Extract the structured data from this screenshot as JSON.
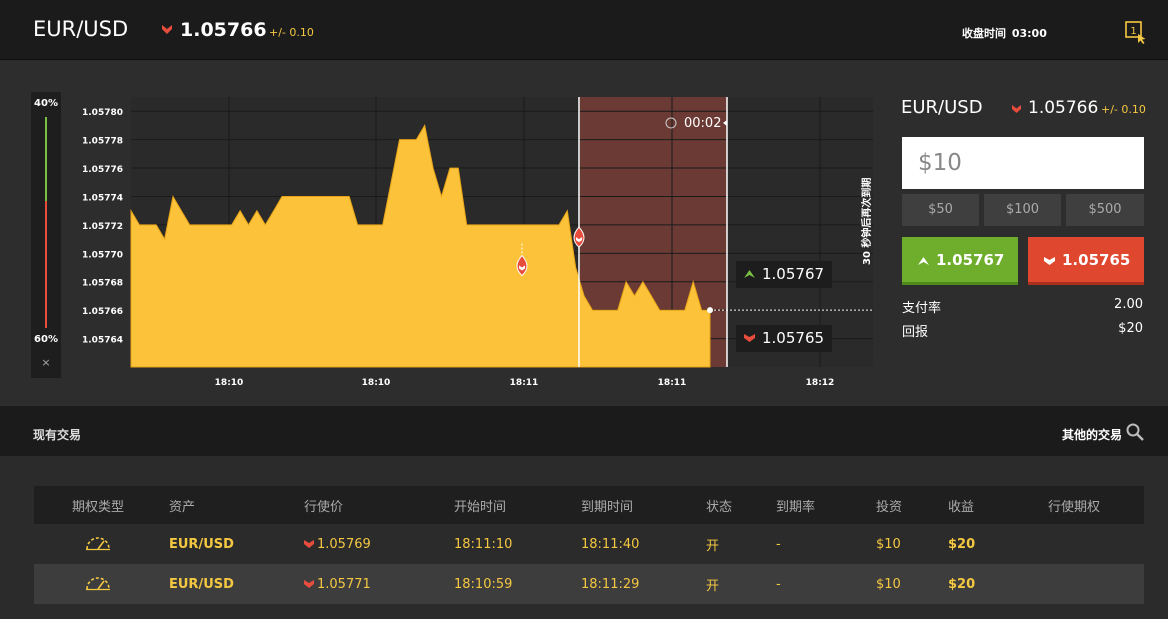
{
  "header": {
    "symbol": "EUR/USD",
    "price": "1.05766",
    "change": "+/- 0.10",
    "close_label": "收盘时间",
    "close_time": "03:00",
    "icon": "one-click-icon"
  },
  "sentiment": {
    "top_percent": "40%",
    "bottom_percent": "60%",
    "close_symbol": "×",
    "call_fraction": 0.4,
    "put_fraction": 0.6
  },
  "chart": {
    "countdown": "00:02",
    "rotated_note": "30 秒钟后再次到期",
    "call_tag": "1.05767",
    "put_tag": "1.05765",
    "colors": {
      "area": "#fbc23a",
      "expiry_zone": "#6b3a34",
      "call": "#79c043",
      "put": "#e74c3c"
    }
  },
  "chart_data": {
    "type": "area",
    "y_ticks": [
      "1.05780",
      "1.05778",
      "1.05776",
      "1.05774",
      "1.05772",
      "1.05770",
      "1.05768",
      "1.05766",
      "1.05764"
    ],
    "x_ticks": [
      "18:10",
      "18:10",
      "18:11",
      "18:11",
      "18:12"
    ],
    "ylim": [
      1.05762,
      1.05782
    ],
    "current_price": 1.05766,
    "series": [
      {
        "values": [
          1.05773,
          1.05772,
          1.05772,
          1.05772,
          1.05771,
          1.05774,
          1.05773,
          1.05772,
          1.05772,
          1.05772,
          1.05772,
          1.05772,
          1.05772,
          1.05773,
          1.05772,
          1.05773,
          1.05772,
          1.05773,
          1.05774,
          1.05774,
          1.05774,
          1.05774,
          1.05774,
          1.05774,
          1.05774,
          1.05774,
          1.05774,
          1.05772,
          1.05772,
          1.05772,
          1.05772,
          1.05775,
          1.05778,
          1.05778,
          1.05778,
          1.05779,
          1.05776,
          1.05774,
          1.05776,
          1.05776,
          1.05772,
          1.05772,
          1.05772,
          1.05772,
          1.05772,
          1.05772,
          1.05772,
          1.05772,
          1.05772,
          1.05772,
          1.05772,
          1.05772,
          1.05773,
          1.05769,
          1.05767,
          1.05766,
          1.05766,
          1.05766,
          1.05766,
          1.05768,
          1.05767,
          1.05768,
          1.05767,
          1.05766,
          1.05766,
          1.05766,
          1.05766,
          1.05768,
          1.05766,
          1.05766
        ]
      }
    ],
    "trade_markers": [
      {
        "price": 1.05769
      },
      {
        "price": 1.05771
      }
    ]
  },
  "panel": {
    "symbol": "EUR/USD",
    "price": "1.05766",
    "change": "+/- 0.10",
    "amount": "$10",
    "quick_amounts": [
      "$50",
      "$100",
      "$500"
    ],
    "call_price": "1.05767",
    "put_price": "1.05765",
    "payout_label": "支付率",
    "payout_value": "2.00",
    "return_label": "回报",
    "return_value": "$20"
  },
  "trades": {
    "title": "现有交易",
    "other_label": "其他的交易",
    "columns": [
      "期权类型",
      "资产",
      "行使价",
      "开始时间",
      "到期时间",
      "状态",
      "到期率",
      "投资",
      "收益",
      "行使期权"
    ],
    "rows": [
      {
        "asset": "EUR/USD",
        "strike": "1.05769",
        "start": "18:11:10",
        "expiry": "18:11:40",
        "status": "开",
        "rate": "-",
        "invest": "$10",
        "profit": "$20"
      },
      {
        "asset": "EUR/USD",
        "strike": "1.05771",
        "start": "18:10:59",
        "expiry": "18:11:29",
        "status": "开",
        "rate": "-",
        "invest": "$10",
        "profit": "$20"
      }
    ]
  }
}
